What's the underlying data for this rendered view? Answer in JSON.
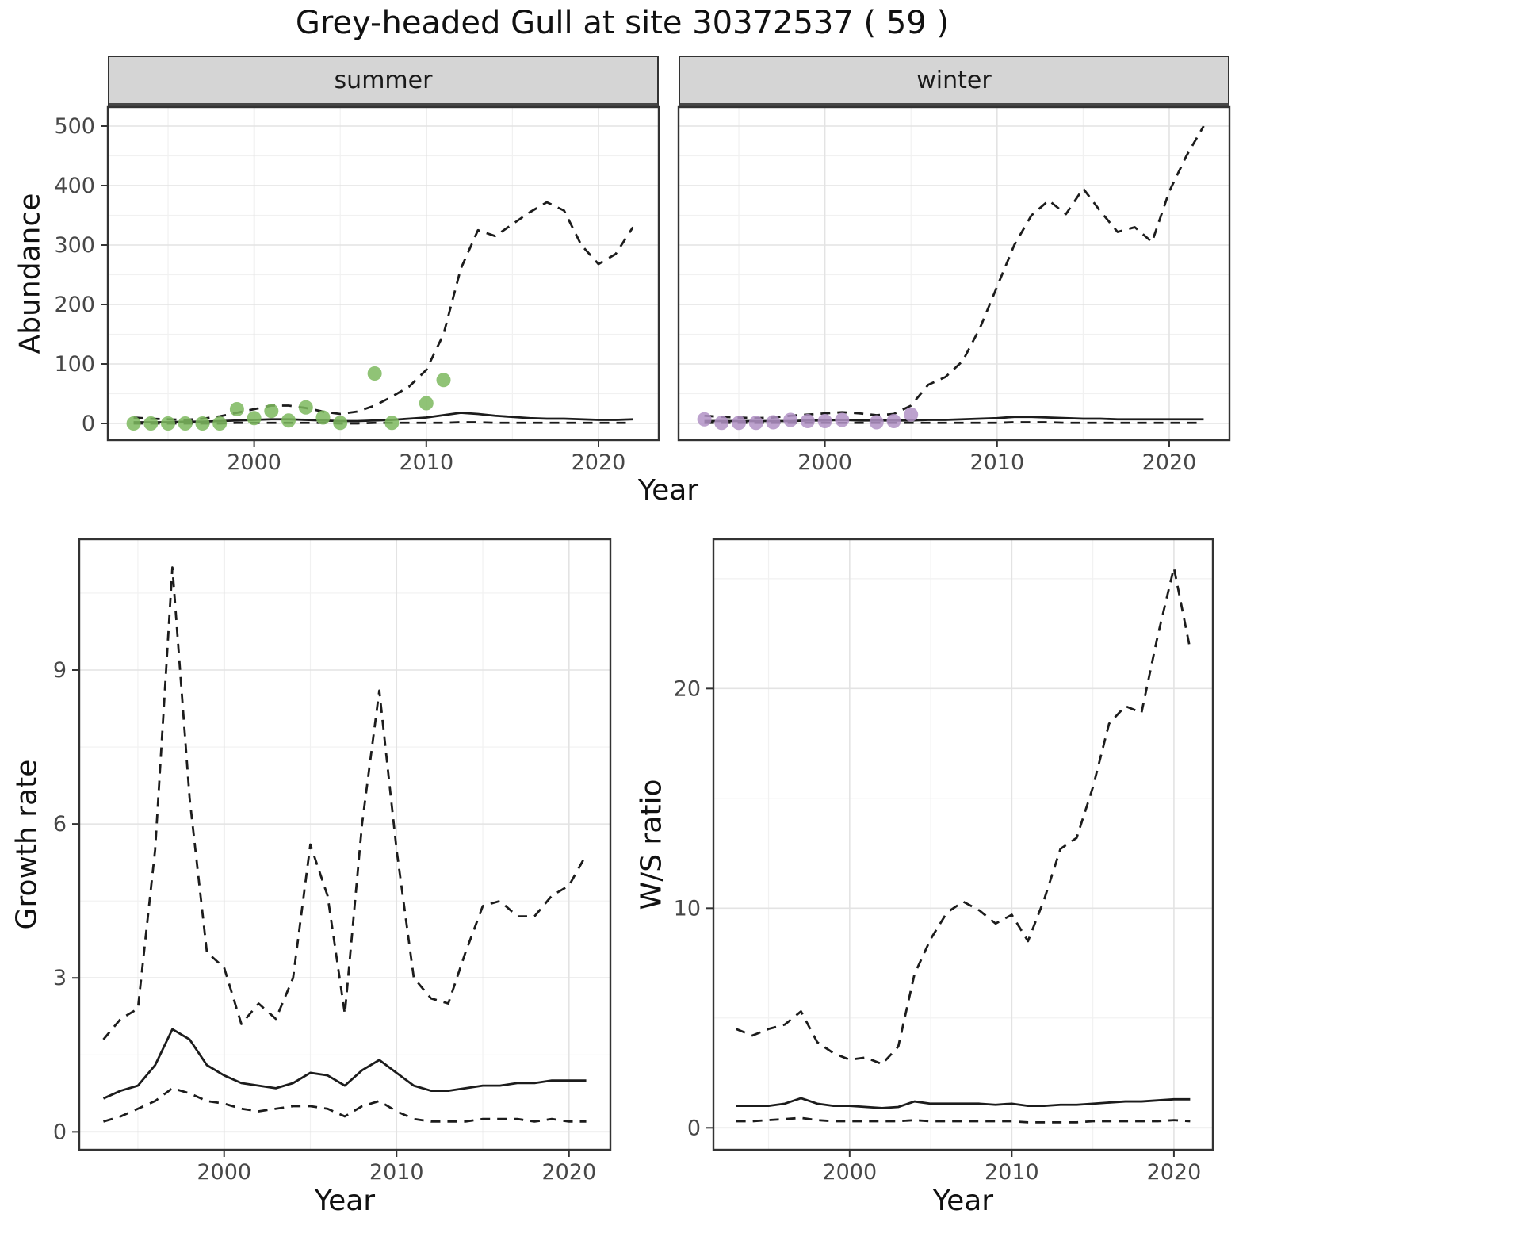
{
  "title": "Grey-headed Gull at site 30372537 ( 59 )",
  "chart_data": [
    {
      "id": "abundance-summer",
      "type": "line",
      "facet": "summer",
      "xlabel": "Year",
      "ylabel": "Abundance",
      "xlim": [
        1991.5,
        2023.5
      ],
      "ylim": [
        -28,
        532
      ],
      "xticks": [
        2000,
        2010,
        2020
      ],
      "yticks": [
        0,
        100,
        200,
        300,
        400,
        500
      ],
      "xminor": [
        1995,
        2005,
        2015
      ],
      "yminor": [
        50,
        150,
        250,
        350,
        450
      ],
      "x": [
        1993,
        1994,
        1995,
        1996,
        1997,
        1998,
        1999,
        2000,
        2001,
        2002,
        2003,
        2004,
        2005,
        2006,
        2007,
        2008,
        2009,
        2010,
        2011,
        2012,
        2013,
        2014,
        2015,
        2016,
        2017,
        2018,
        2019,
        2020,
        2021,
        2022
      ],
      "series": [
        {
          "name": "upper_ci",
          "style": "dashed",
          "values": [
            10,
            8,
            7,
            6,
            8,
            12,
            18,
            24,
            30,
            30,
            26,
            20,
            16,
            20,
            30,
            45,
            62,
            90,
            150,
            260,
            325,
            315,
            335,
            355,
            372,
            358,
            300,
            268,
            285,
            330
          ]
        },
        {
          "name": "median",
          "style": "solid",
          "values": [
            2,
            2,
            2,
            3,
            3,
            4,
            5,
            6,
            7,
            7,
            6,
            5,
            4,
            4,
            5,
            6,
            8,
            10,
            14,
            18,
            16,
            13,
            11,
            9,
            8,
            8,
            7,
            6,
            6,
            7
          ]
        },
        {
          "name": "lower_ci",
          "style": "dashed",
          "values": [
            0,
            0,
            0,
            0,
            0,
            0,
            1,
            1,
            1,
            1,
            1,
            1,
            0,
            0,
            1,
            1,
            1,
            1,
            1,
            2,
            2,
            1,
            1,
            1,
            1,
            1,
            1,
            1,
            1,
            1
          ]
        }
      ],
      "points": {
        "name": "observed-counts-summer",
        "color": "#7cb85e",
        "x": [
          1993,
          1994,
          1995,
          1996,
          1997,
          1998,
          1999,
          2000,
          2001,
          2002,
          2003,
          2004,
          2005,
          2007,
          2008,
          2010,
          2011
        ],
        "y": [
          0,
          0,
          0,
          0,
          0,
          0,
          24,
          9,
          21,
          5,
          27,
          10,
          1,
          84,
          1,
          34,
          73
        ]
      }
    },
    {
      "id": "abundance-winter",
      "type": "line",
      "facet": "winter",
      "xlabel": "Year",
      "ylabel": "Abundance",
      "xlim": [
        1991.5,
        2023.5
      ],
      "ylim": [
        -28,
        532
      ],
      "xticks": [
        2000,
        2010,
        2020
      ],
      "yticks": [
        0,
        100,
        200,
        300,
        400,
        500
      ],
      "xminor": [
        1995,
        2005,
        2015
      ],
      "yminor": [
        50,
        150,
        250,
        350,
        450
      ],
      "x": [
        1993,
        1994,
        1995,
        1996,
        1997,
        1998,
        1999,
        2000,
        2001,
        2002,
        2003,
        2004,
        2005,
        2006,
        2007,
        2008,
        2009,
        2010,
        2011,
        2012,
        2013,
        2014,
        2015,
        2016,
        2017,
        2018,
        2019,
        2020,
        2021,
        2022
      ],
      "series": [
        {
          "name": "upper_ci",
          "style": "dashed",
          "values": [
            13,
            11,
            10,
            9,
            10,
            13,
            15,
            17,
            19,
            17,
            14,
            16,
            30,
            65,
            78,
            105,
            160,
            230,
            300,
            350,
            375,
            352,
            395,
            357,
            322,
            330,
            305,
            390,
            450,
            500
          ]
        },
        {
          "name": "median",
          "style": "solid",
          "values": [
            4,
            4,
            4,
            4,
            4,
            4,
            5,
            5,
            6,
            5,
            5,
            5,
            5,
            6,
            6,
            7,
            8,
            9,
            11,
            11,
            10,
            9,
            8,
            8,
            7,
            7,
            7,
            7,
            7,
            7
          ]
        },
        {
          "name": "lower_ci",
          "style": "dashed",
          "values": [
            1,
            1,
            1,
            1,
            1,
            1,
            1,
            1,
            1,
            1,
            1,
            1,
            1,
            1,
            1,
            1,
            1,
            1,
            2,
            2,
            2,
            1,
            1,
            1,
            1,
            1,
            1,
            1,
            1,
            1
          ]
        }
      ],
      "points": {
        "name": "observed-counts-winter",
        "color": "#b192c5",
        "x": [
          1993,
          1994,
          1995,
          1996,
          1997,
          1998,
          1999,
          2000,
          2001,
          2003,
          2004,
          2005
        ],
        "y": [
          7,
          1,
          1,
          1,
          2,
          6,
          4,
          4,
          6,
          2,
          4,
          15
        ]
      }
    },
    {
      "id": "growth-rate",
      "type": "line",
      "xlabel": "Year",
      "ylabel": "Growth rate",
      "xlim": [
        1991.6,
        2022.4
      ],
      "ylim": [
        -0.35,
        11.55
      ],
      "xticks": [
        2000,
        2010,
        2020
      ],
      "yticks": [
        0,
        3,
        6,
        9
      ],
      "xminor": [
        1995,
        2005,
        2015
      ],
      "yminor": [
        1.5,
        4.5,
        7.5,
        10.5
      ],
      "x": [
        1993,
        1994,
        1995,
        1996,
        1997,
        1998,
        1999,
        2000,
        2001,
        2002,
        2003,
        2004,
        2005,
        2006,
        2007,
        2008,
        2009,
        2010,
        2011,
        2012,
        2013,
        2014,
        2015,
        2016,
        2017,
        2018,
        2019,
        2020,
        2021
      ],
      "series": [
        {
          "name": "upper_ci",
          "style": "dashed",
          "values": [
            1.8,
            2.2,
            2.4,
            5.5,
            11.0,
            6.5,
            3.5,
            3.2,
            2.1,
            2.5,
            2.2,
            3.0,
            5.6,
            4.6,
            2.3,
            6.0,
            8.6,
            5.5,
            3.0,
            2.6,
            2.5,
            3.5,
            4.4,
            4.5,
            4.2,
            4.2,
            4.6,
            4.8,
            5.4
          ]
        },
        {
          "name": "median",
          "style": "solid",
          "values": [
            0.65,
            0.8,
            0.9,
            1.3,
            2.0,
            1.8,
            1.3,
            1.1,
            0.95,
            0.9,
            0.85,
            0.95,
            1.15,
            1.1,
            0.9,
            1.2,
            1.4,
            1.15,
            0.9,
            0.8,
            0.8,
            0.85,
            0.9,
            0.9,
            0.95,
            0.95,
            1.0,
            1.0,
            1.0
          ]
        },
        {
          "name": "lower_ci",
          "style": "dashed",
          "values": [
            0.2,
            0.3,
            0.45,
            0.6,
            0.85,
            0.75,
            0.6,
            0.55,
            0.45,
            0.4,
            0.45,
            0.5,
            0.5,
            0.45,
            0.3,
            0.5,
            0.6,
            0.4,
            0.25,
            0.2,
            0.2,
            0.2,
            0.25,
            0.25,
            0.25,
            0.2,
            0.25,
            0.2,
            0.2
          ]
        }
      ]
    },
    {
      "id": "ws-ratio",
      "type": "line",
      "xlabel": "Year",
      "ylabel": "W/S ratio",
      "xlim": [
        1991.6,
        2022.4
      ],
      "ylim": [
        -1.0,
        26.8
      ],
      "xticks": [
        2000,
        2010,
        2020
      ],
      "yticks": [
        0,
        10,
        20
      ],
      "xminor": [
        1995,
        2005,
        2015
      ],
      "yminor": [
        5,
        15,
        25
      ],
      "x": [
        1993,
        1994,
        1995,
        1996,
        1997,
        1998,
        1999,
        2000,
        2001,
        2002,
        2003,
        2004,
        2005,
        2006,
        2007,
        2008,
        2009,
        2010,
        2011,
        2012,
        2013,
        2014,
        2015,
        2016,
        2017,
        2018,
        2019,
        2020,
        2021
      ],
      "series": [
        {
          "name": "upper_ci",
          "style": "dashed",
          "values": [
            4.5,
            4.2,
            4.5,
            4.7,
            5.3,
            3.9,
            3.4,
            3.1,
            3.2,
            2.9,
            3.7,
            7.0,
            8.6,
            9.8,
            10.3,
            9.9,
            9.3,
            9.7,
            8.5,
            10.4,
            12.7,
            13.2,
            15.5,
            18.4,
            19.2,
            18.9,
            22.4,
            25.5,
            21.8
          ]
        },
        {
          "name": "median",
          "style": "solid",
          "values": [
            1.0,
            1.0,
            1.0,
            1.1,
            1.35,
            1.1,
            1.0,
            1.0,
            0.95,
            0.9,
            0.95,
            1.2,
            1.1,
            1.1,
            1.1,
            1.1,
            1.05,
            1.1,
            1.0,
            1.0,
            1.05,
            1.05,
            1.1,
            1.15,
            1.2,
            1.2,
            1.25,
            1.3,
            1.3
          ]
        },
        {
          "name": "lower_ci",
          "style": "dashed",
          "values": [
            0.3,
            0.3,
            0.35,
            0.4,
            0.45,
            0.35,
            0.3,
            0.3,
            0.3,
            0.3,
            0.3,
            0.35,
            0.3,
            0.3,
            0.3,
            0.3,
            0.3,
            0.3,
            0.25,
            0.25,
            0.25,
            0.25,
            0.3,
            0.3,
            0.3,
            0.3,
            0.3,
            0.35,
            0.3
          ]
        }
      ]
    }
  ]
}
